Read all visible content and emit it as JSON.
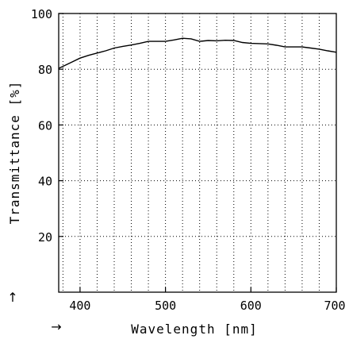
{
  "chart_data": {
    "type": "line",
    "xlabel": "Wavelength [nm]",
    "ylabel": "Transmittance [%]",
    "x_arrow": "→",
    "y_arrow": "↑",
    "xlim": [
      375,
      700
    ],
    "ylim": [
      0,
      100
    ],
    "x_ticks": [
      400,
      500,
      600,
      700
    ],
    "y_ticks": [
      20,
      40,
      60,
      80,
      100
    ],
    "x_grid_step": 20,
    "grid": true,
    "grid_style": "dotted",
    "line_color": "#000000",
    "series": [
      {
        "x": [
          375,
          390,
          400,
          410,
          420,
          430,
          440,
          450,
          460,
          470,
          480,
          490,
          500,
          510,
          520,
          530,
          540,
          550,
          560,
          570,
          580,
          590,
          600,
          610,
          620,
          630,
          640,
          650,
          660,
          670,
          680,
          690,
          700
        ],
        "values": [
          80.3,
          82.5,
          84.0,
          85.0,
          85.8,
          86.6,
          87.6,
          88.2,
          88.7,
          89.3,
          90.0,
          90.0,
          90.0,
          90.5,
          91.1,
          90.9,
          90.0,
          90.3,
          90.2,
          90.4,
          90.3,
          89.6,
          89.3,
          89.2,
          89.1,
          88.6,
          88.0,
          88.0,
          88.0,
          87.6,
          87.2,
          86.6,
          86.1
        ]
      }
    ]
  }
}
